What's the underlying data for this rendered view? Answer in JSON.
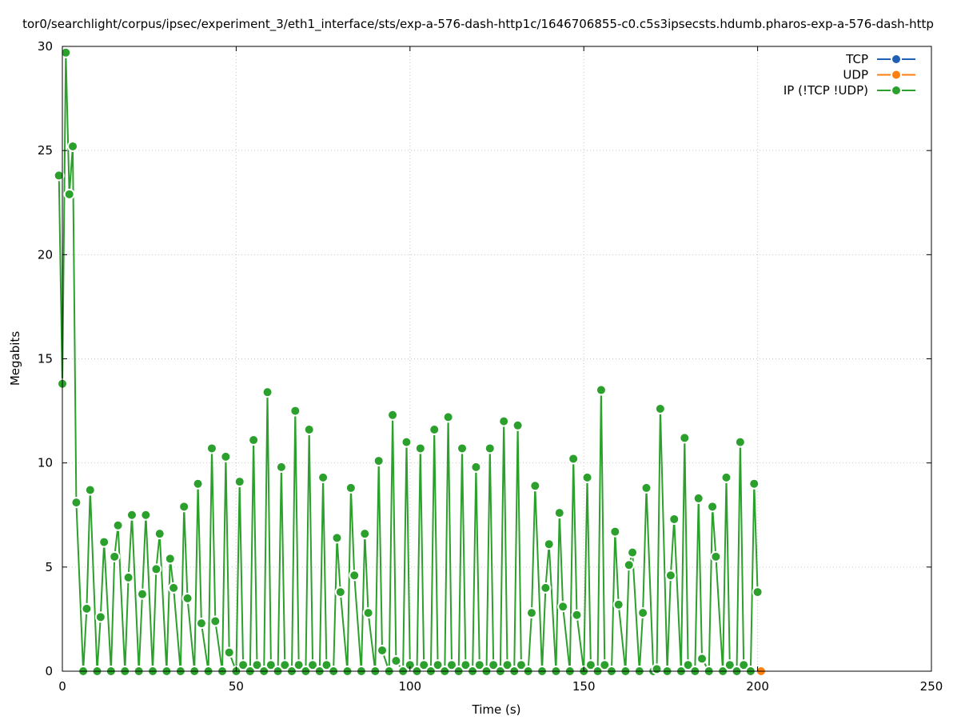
{
  "chart_data": {
    "type": "line",
    "title": "tor0/searchlight/corpus/ipsec/experiment_3/eth1_interface/sts/exp-a-576-dash-http1c/1646706855-c0.c5s3ipsecsts.hdumb.pharos-exp-a-576-dash-http",
    "xlabel": "Time (s)",
    "ylabel": "Megabits",
    "xlim": [
      0,
      250
    ],
    "ylim": [
      0,
      30
    ],
    "xticks": [
      0,
      50,
      100,
      150,
      200,
      250
    ],
    "yticks": [
      0,
      5,
      10,
      15,
      20,
      25,
      30
    ],
    "grid": true,
    "legend_position": "top-right",
    "series": [
      {
        "name": "TCP",
        "color": "#1f5fb4",
        "x": [],
        "y": []
      },
      {
        "name": "UDP",
        "color": "#ff7f0e",
        "x": [
          201
        ],
        "y": [
          0
        ]
      },
      {
        "name": "IP (!TCP  !UDP)",
        "color": "#2ca02c",
        "x": [
          -1,
          0,
          1,
          2,
          3,
          4,
          6,
          7,
          8,
          10,
          11,
          12,
          14,
          15,
          16,
          18,
          19,
          20,
          22,
          23,
          24,
          26,
          27,
          28,
          30,
          31,
          32,
          34,
          35,
          36,
          38,
          39,
          40,
          42,
          43,
          44,
          46,
          47,
          48,
          50,
          51,
          52,
          54,
          55,
          56,
          58,
          59,
          60,
          62,
          63,
          64,
          66,
          67,
          68,
          70,
          71,
          72,
          74,
          75,
          76,
          78,
          79,
          80,
          82,
          83,
          84,
          86,
          87,
          88,
          90,
          91,
          92,
          94,
          95,
          96,
          98,
          99,
          100,
          102,
          103,
          104,
          106,
          107,
          108,
          110,
          111,
          112,
          114,
          115,
          116,
          118,
          119,
          120,
          122,
          123,
          124,
          126,
          127,
          128,
          130,
          131,
          132,
          134,
          135,
          136,
          138,
          139,
          140,
          142,
          143,
          144,
          146,
          147,
          148,
          150,
          151,
          152,
          154,
          155,
          156,
          158,
          159,
          160,
          162,
          163,
          164,
          166,
          167,
          168,
          170,
          171,
          172,
          174,
          175,
          176,
          178,
          179,
          180,
          182,
          183,
          184,
          186,
          187,
          188,
          190,
          191,
          192,
          194,
          195,
          196,
          198,
          199,
          200
        ],
        "y": [
          23.8,
          13.8,
          29.7,
          22.9,
          25.2,
          8.1,
          0,
          3.0,
          8.7,
          0,
          2.6,
          6.2,
          0,
          5.5,
          7.0,
          0,
          4.5,
          7.5,
          0,
          3.7,
          7.5,
          0,
          4.9,
          6.6,
          0,
          5.4,
          4.0,
          0,
          7.9,
          3.5,
          0,
          9.0,
          2.3,
          0,
          10.7,
          2.4,
          0,
          10.3,
          0.9,
          0,
          9.1,
          0.3,
          0,
          11.1,
          0.3,
          0,
          13.4,
          0.3,
          0,
          9.8,
          0.3,
          0,
          12.5,
          0.3,
          0,
          11.6,
          0.3,
          0,
          9.3,
          0.3,
          0,
          6.4,
          3.8,
          0,
          8.8,
          4.6,
          0,
          6.6,
          2.8,
          0,
          10.1,
          1.0,
          0,
          12.3,
          0.5,
          0,
          11.0,
          0.3,
          0,
          10.7,
          0.3,
          0,
          11.6,
          0.3,
          0,
          12.2,
          0.3,
          0,
          10.7,
          0.3,
          0,
          9.8,
          0.3,
          0,
          10.7,
          0.3,
          0,
          12.0,
          0.3,
          0,
          11.8,
          0.3,
          0,
          2.8,
          8.9,
          0,
          4.0,
          6.1,
          0,
          7.6,
          3.1,
          0,
          10.2,
          2.7,
          0,
          9.3,
          0.3,
          0,
          13.5,
          0.3,
          0,
          6.7,
          3.2,
          0,
          5.1,
          5.7,
          0,
          2.8,
          8.8,
          0,
          0.1,
          12.6,
          0,
          4.6,
          7.3,
          0,
          11.2,
          0.3,
          0,
          8.3,
          0.6,
          0,
          7.9,
          5.5,
          0,
          9.3,
          0.3,
          0,
          11.0,
          0.3,
          0,
          9.0,
          3.8
        ]
      }
    ]
  }
}
